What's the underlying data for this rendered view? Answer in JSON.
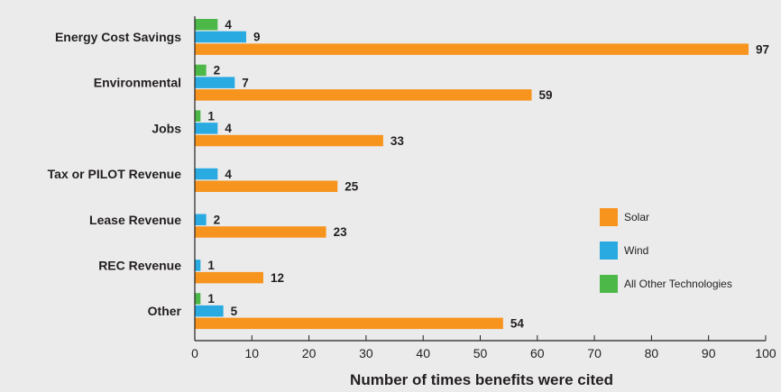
{
  "chart_data": {
    "type": "bar",
    "orientation": "horizontal",
    "categories": [
      "Energy Cost Savings",
      "Environmental",
      "Jobs",
      "Tax or PILOT Revenue",
      "Lease Revenue",
      "REC Revenue",
      "Other"
    ],
    "series": [
      {
        "name": "All Other Technologies",
        "color": "#4cb848",
        "values": [
          4,
          2,
          1,
          null,
          null,
          null,
          1
        ]
      },
      {
        "name": "Wind",
        "color": "#29abe2",
        "values": [
          9,
          7,
          4,
          4,
          2,
          1,
          5
        ]
      },
      {
        "name": "Solar",
        "color": "#f7941d",
        "values": [
          97,
          59,
          33,
          25,
          23,
          12,
          54
        ]
      }
    ],
    "legend_order": [
      "Solar",
      "Wind",
      "All Other Technologies"
    ],
    "legend_position": "right",
    "xlabel": "Number of times benefits were cited",
    "ylabel": "",
    "xlim": [
      0,
      100
    ],
    "xticks": [
      0,
      10,
      20,
      30,
      40,
      50,
      60,
      70,
      80,
      90,
      100
    ],
    "grid": false
  }
}
